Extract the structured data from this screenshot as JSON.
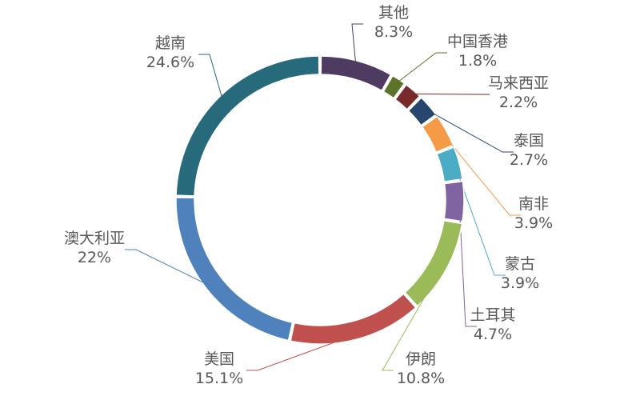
{
  "chart_data": {
    "type": "pie",
    "variant": "donut",
    "title": "",
    "slices": [
      {
        "label": "其他",
        "value": 8.3,
        "display": "8.3%",
        "color": "#4f3b62"
      },
      {
        "label": "中国香港",
        "value": 1.8,
        "display": "1.8%",
        "color": "#5d732a"
      },
      {
        "label": "马来西亚",
        "value": 2.2,
        "display": "2.2%",
        "color": "#7a2a2a"
      },
      {
        "label": "泰国",
        "value": 2.7,
        "display": "2.7%",
        "color": "#27466f"
      },
      {
        "label": "南非",
        "value": 3.9,
        "display": "3.9%",
        "color": "#f59a47"
      },
      {
        "label": "蒙古",
        "value": 3.9,
        "display": "3.9%",
        "color": "#4bacc6"
      },
      {
        "label": "土耳其",
        "value": 4.7,
        "display": "4.7%",
        "color": "#8064a2"
      },
      {
        "label": "伊朗",
        "value": 10.8,
        "display": "10.8%",
        "color": "#9bbb59"
      },
      {
        "label": "美国",
        "value": 15.1,
        "display": "15.1%",
        "color": "#c0504d"
      },
      {
        "label": "澳大利亚",
        "value": 22.0,
        "display": "22%",
        "color": "#4f81bd"
      },
      {
        "label": "越南",
        "value": 24.6,
        "display": "24.6%",
        "color": "#276a7c"
      }
    ],
    "legend": "none",
    "data_labels": "outside-with-leader-lines"
  }
}
